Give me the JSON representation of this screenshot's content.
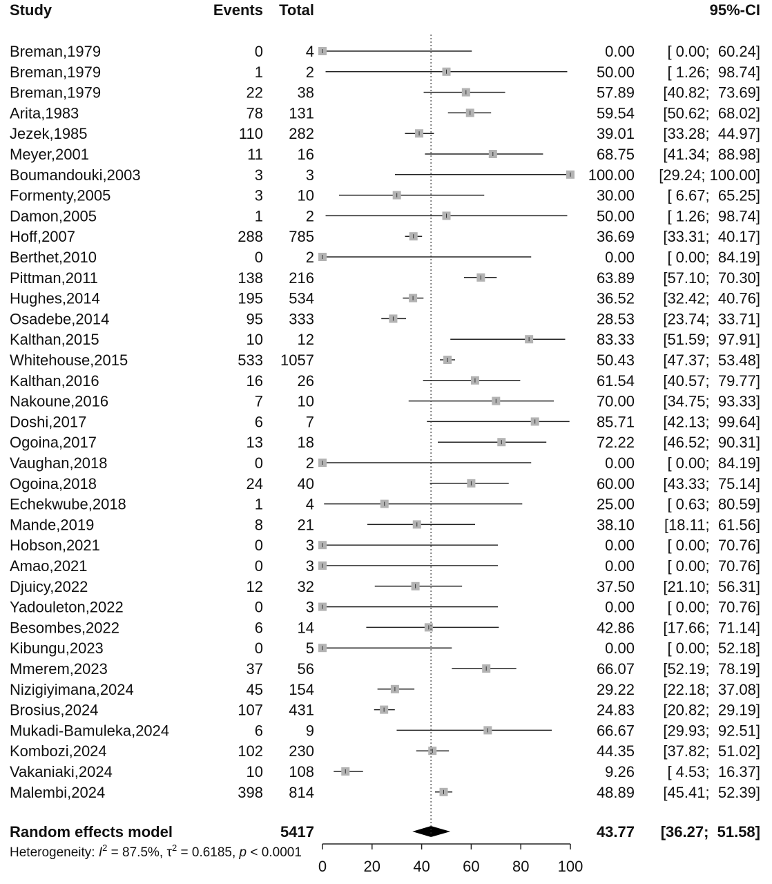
{
  "headers": {
    "study": "Study",
    "events": "Events",
    "total": "Total",
    "ci": "95%-CI"
  },
  "chart_data": {
    "type": "forest",
    "xlim": [
      0,
      100
    ],
    "xticks": [
      "0",
      "20",
      "40",
      "60",
      "80",
      "100"
    ],
    "reference_line": 43.77,
    "studies": [
      {
        "study": "Breman,1979",
        "events": "0",
        "total": "4",
        "est": 0.0,
        "lo": 0.0,
        "hi": 60.24,
        "est_text": "0.00",
        "ci_text": "[ 0.00;  60.24]"
      },
      {
        "study": "Breman,1979",
        "events": "1",
        "total": "2",
        "est": 50.0,
        "lo": 1.26,
        "hi": 98.74,
        "est_text": "50.00",
        "ci_text": "[ 1.26;  98.74]"
      },
      {
        "study": "Breman,1979",
        "events": "22",
        "total": "38",
        "est": 57.89,
        "lo": 40.82,
        "hi": 73.69,
        "est_text": "57.89",
        "ci_text": "[40.82;  73.69]"
      },
      {
        "study": "Arita,1983",
        "events": "78",
        "total": "131",
        "est": 59.54,
        "lo": 50.62,
        "hi": 68.02,
        "est_text": "59.54",
        "ci_text": "[50.62;  68.02]"
      },
      {
        "study": "Jezek,1985",
        "events": "110",
        "total": "282",
        "est": 39.01,
        "lo": 33.28,
        "hi": 44.97,
        "est_text": "39.01",
        "ci_text": "[33.28;  44.97]"
      },
      {
        "study": "Meyer,2001",
        "events": "11",
        "total": "16",
        "est": 68.75,
        "lo": 41.34,
        "hi": 88.98,
        "est_text": "68.75",
        "ci_text": "[41.34;  88.98]"
      },
      {
        "study": "Boumandouki,2003",
        "events": "3",
        "total": "3",
        "est": 100.0,
        "lo": 29.24,
        "hi": 100.0,
        "est_text": "100.00",
        "ci_text": "[29.24; 100.00]"
      },
      {
        "study": "Formenty,2005",
        "events": "3",
        "total": "10",
        "est": 30.0,
        "lo": 6.67,
        "hi": 65.25,
        "est_text": "30.00",
        "ci_text": "[ 6.67;  65.25]"
      },
      {
        "study": "Damon,2005",
        "events": "1",
        "total": "2",
        "est": 50.0,
        "lo": 1.26,
        "hi": 98.74,
        "est_text": "50.00",
        "ci_text": "[ 1.26;  98.74]"
      },
      {
        "study": "Hoff,2007",
        "events": "288",
        "total": "785",
        "est": 36.69,
        "lo": 33.31,
        "hi": 40.17,
        "est_text": "36.69",
        "ci_text": "[33.31;  40.17]"
      },
      {
        "study": "Berthet,2010",
        "events": "0",
        "total": "2",
        "est": 0.0,
        "lo": 0.0,
        "hi": 84.19,
        "est_text": "0.00",
        "ci_text": "[ 0.00;  84.19]"
      },
      {
        "study": "Pittman,2011",
        "events": "138",
        "total": "216",
        "est": 63.89,
        "lo": 57.1,
        "hi": 70.3,
        "est_text": "63.89",
        "ci_text": "[57.10;  70.30]"
      },
      {
        "study": "Hughes,2014",
        "events": "195",
        "total": "534",
        "est": 36.52,
        "lo": 32.42,
        "hi": 40.76,
        "est_text": "36.52",
        "ci_text": "[32.42;  40.76]"
      },
      {
        "study": "Osadebe,2014",
        "events": "95",
        "total": "333",
        "est": 28.53,
        "lo": 23.74,
        "hi": 33.71,
        "est_text": "28.53",
        "ci_text": "[23.74;  33.71]"
      },
      {
        "study": "Kalthan,2015",
        "events": "10",
        "total": "12",
        "est": 83.33,
        "lo": 51.59,
        "hi": 97.91,
        "est_text": "83.33",
        "ci_text": "[51.59;  97.91]"
      },
      {
        "study": "Whitehouse,2015",
        "events": "533",
        "total": "1057",
        "est": 50.43,
        "lo": 47.37,
        "hi": 53.48,
        "est_text": "50.43",
        "ci_text": "[47.37;  53.48]"
      },
      {
        "study": "Kalthan,2016",
        "events": "16",
        "total": "26",
        "est": 61.54,
        "lo": 40.57,
        "hi": 79.77,
        "est_text": "61.54",
        "ci_text": "[40.57;  79.77]"
      },
      {
        "study": "Nakoune,2016",
        "events": "7",
        "total": "10",
        "est": 70.0,
        "lo": 34.75,
        "hi": 93.33,
        "est_text": "70.00",
        "ci_text": "[34.75;  93.33]"
      },
      {
        "study": "Doshi,2017",
        "events": "6",
        "total": "7",
        "est": 85.71,
        "lo": 42.13,
        "hi": 99.64,
        "est_text": "85.71",
        "ci_text": "[42.13;  99.64]"
      },
      {
        "study": "Ogoina,2017",
        "events": "13",
        "total": "18",
        "est": 72.22,
        "lo": 46.52,
        "hi": 90.31,
        "est_text": "72.22",
        "ci_text": "[46.52;  90.31]"
      },
      {
        "study": "Vaughan,2018",
        "events": "0",
        "total": "2",
        "est": 0.0,
        "lo": 0.0,
        "hi": 84.19,
        "est_text": "0.00",
        "ci_text": "[ 0.00;  84.19]"
      },
      {
        "study": "Ogoina,2018",
        "events": "24",
        "total": "40",
        "est": 60.0,
        "lo": 43.33,
        "hi": 75.14,
        "est_text": "60.00",
        "ci_text": "[43.33;  75.14]"
      },
      {
        "study": "Echekwube,2018",
        "events": "1",
        "total": "4",
        "est": 25.0,
        "lo": 0.63,
        "hi": 80.59,
        "est_text": "25.00",
        "ci_text": "[ 0.63;  80.59]"
      },
      {
        "study": "Mande,2019",
        "events": "8",
        "total": "21",
        "est": 38.1,
        "lo": 18.11,
        "hi": 61.56,
        "est_text": "38.10",
        "ci_text": "[18.11;  61.56]"
      },
      {
        "study": "Hobson,2021",
        "events": "0",
        "total": "3",
        "est": 0.0,
        "lo": 0.0,
        "hi": 70.76,
        "est_text": "0.00",
        "ci_text": "[ 0.00;  70.76]"
      },
      {
        "study": "Amao,2021",
        "events": "0",
        "total": "3",
        "est": 0.0,
        "lo": 0.0,
        "hi": 70.76,
        "est_text": "0.00",
        "ci_text": "[ 0.00;  70.76]"
      },
      {
        "study": "Djuicy,2022",
        "events": "12",
        "total": "32",
        "est": 37.5,
        "lo": 21.1,
        "hi": 56.31,
        "est_text": "37.50",
        "ci_text": "[21.10;  56.31]"
      },
      {
        "study": "Yadouleton,2022",
        "events": "0",
        "total": "3",
        "est": 0.0,
        "lo": 0.0,
        "hi": 70.76,
        "est_text": "0.00",
        "ci_text": "[ 0.00;  70.76]"
      },
      {
        "study": "Besombes,2022",
        "events": "6",
        "total": "14",
        "est": 42.86,
        "lo": 17.66,
        "hi": 71.14,
        "est_text": "42.86",
        "ci_text": "[17.66;  71.14]"
      },
      {
        "study": "Kibungu,2023",
        "events": "0",
        "total": "5",
        "est": 0.0,
        "lo": 0.0,
        "hi": 52.18,
        "est_text": "0.00",
        "ci_text": "[ 0.00;  52.18]"
      },
      {
        "study": "Mmerem,2023",
        "events": "37",
        "total": "56",
        "est": 66.07,
        "lo": 52.19,
        "hi": 78.19,
        "est_text": "66.07",
        "ci_text": "[52.19;  78.19]"
      },
      {
        "study": "Nizigiyimana,2024",
        "events": "45",
        "total": "154",
        "est": 29.22,
        "lo": 22.18,
        "hi": 37.08,
        "est_text": "29.22",
        "ci_text": "[22.18;  37.08]"
      },
      {
        "study": "Brosius,2024",
        "events": "107",
        "total": "431",
        "est": 24.83,
        "lo": 20.82,
        "hi": 29.19,
        "est_text": "24.83",
        "ci_text": "[20.82;  29.19]"
      },
      {
        "study": "Mukadi-Bamuleka,2024",
        "events": "6",
        "total": "9",
        "est": 66.67,
        "lo": 29.93,
        "hi": 92.51,
        "est_text": "66.67",
        "ci_text": "[29.93;  92.51]"
      },
      {
        "study": "Kombozi,2024",
        "events": "102",
        "total": "230",
        "est": 44.35,
        "lo": 37.82,
        "hi": 51.02,
        "est_text": "44.35",
        "ci_text": "[37.82;  51.02]"
      },
      {
        "study": "Vakaniaki,2024",
        "events": "10",
        "total": "108",
        "est": 9.26,
        "lo": 4.53,
        "hi": 16.37,
        "est_text": "9.26",
        "ci_text": "[ 4.53;  16.37]"
      },
      {
        "study": "Malembi,2024",
        "events": "398",
        "total": "814",
        "est": 48.89,
        "lo": 45.41,
        "hi": 52.39,
        "est_text": "48.89",
        "ci_text": "[45.41;  52.39]"
      }
    ],
    "summary": {
      "label": "Random effects model",
      "total": "5417",
      "est": 43.77,
      "lo": 36.27,
      "hi": 51.58,
      "est_text": "43.77",
      "ci_text": "[36.27;  51.58]"
    },
    "heterogeneity": {
      "prefix": "Heterogeneity: ",
      "i2_symbol": "I",
      "i2_sup": "2",
      "i2_value": " = 87.5%, ",
      "tau2_symbol": "τ",
      "tau2_sup": "2",
      "tau2_value": " = 0.6185, ",
      "p_symbol": "p",
      "p_value": " < 0.0001"
    },
    "colors": {
      "box": "#b3b3b3",
      "line": "#222222",
      "diamond": "#000000"
    }
  }
}
